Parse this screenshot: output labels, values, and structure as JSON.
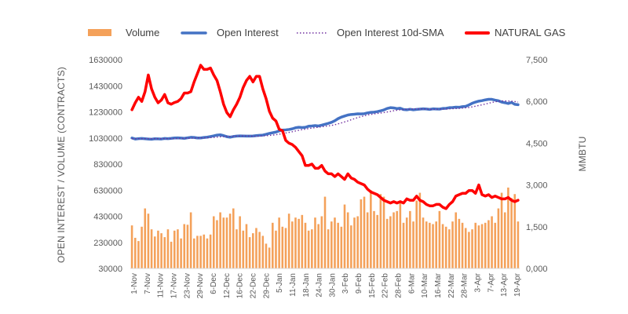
{
  "chart_data": {
    "type": "bar+line",
    "title": "",
    "legend": {
      "position": "top",
      "items": [
        {
          "name": "Volume",
          "style": "bar",
          "color": "#F4A15A"
        },
        {
          "name": "Open Interest",
          "style": "line",
          "color": "#4472C4"
        },
        {
          "name": "Open Interest 10d-SMA",
          "style": "dotted",
          "color": "#7030A0"
        },
        {
          "name": "NATURAL GAS",
          "style": "line",
          "color": "#FF0000"
        }
      ]
    },
    "ylabel_left": "OPEN INTEREST / VOLUME (CONTRACTS)",
    "ylabel_right": "MMBTU",
    "ylim_left": [
      30000,
      1630000
    ],
    "ylim_right": [
      0,
      7500
    ],
    "yticks_left": [
      "1630000",
      "1430000",
      "1230000",
      "1030000",
      "830000",
      "630000",
      "430000",
      "230000",
      "30000"
    ],
    "yticks_right": [
      "7,500",
      "6,000",
      "4,500",
      "3,000",
      "1,500",
      "0,000"
    ],
    "x_tick_labels": [
      "1-Nov",
      "7-Nov",
      "11-Nov",
      "17-Nov",
      "23-Nov",
      "29-Nov",
      "6-Dec",
      "12-Dec",
      "16-Dec",
      "22-Dec",
      "29-Dec",
      "5-Jan",
      "11-Jan",
      "18-Jan",
      "24-Jan",
      "30-Jan",
      "3-Feb",
      "9-Feb",
      "15-Feb",
      "22-Feb",
      "28-Feb",
      "6-Mar",
      "10-Mar",
      "16-Mar",
      "22-Mar",
      "28-Mar",
      "3-Apr",
      "7-Apr",
      "13-Apr",
      "19-Apr"
    ],
    "n_points": 119,
    "series": [
      {
        "name": "Volume",
        "axis": "left",
        "values": [
          360000,
          265000,
          240000,
          350000,
          490000,
          450000,
          330000,
          275000,
          320000,
          300000,
          270000,
          330000,
          235000,
          320000,
          330000,
          260000,
          370000,
          365000,
          460000,
          260000,
          280000,
          280000,
          290000,
          260000,
          290000,
          430000,
          400000,
          460000,
          420000,
          420000,
          450000,
          490000,
          330000,
          430000,
          320000,
          370000,
          270000,
          300000,
          340000,
          310000,
          280000,
          220000,
          190000,
          380000,
          320000,
          420000,
          350000,
          340000,
          450000,
          390000,
          420000,
          410000,
          440000,
          380000,
          320000,
          330000,
          420000,
          370000,
          430000,
          580000,
          330000,
          390000,
          420000,
          380000,
          350000,
          520000,
          460000,
          360000,
          420000,
          430000,
          560000,
          580000,
          460000,
          630000,
          470000,
          440000,
          600000,
          580000,
          410000,
          430000,
          460000,
          470000,
          530000,
          380000,
          420000,
          470000,
          390000,
          550000,
          610000,
          420000,
          390000,
          380000,
          370000,
          390000,
          470000,
          370000,
          350000,
          330000,
          390000,
          460000,
          410000,
          380000,
          340000,
          310000,
          330000,
          380000,
          360000,
          370000,
          380000,
          400000,
          430000,
          380000,
          490000,
          610000,
          460000,
          650000,
          570000,
          600000,
          390000
        ]
      },
      {
        "name": "Open Interest",
        "axis": "left",
        "values": [
          1030000,
          1022000,
          1025000,
          1026000,
          1024000,
          1022000,
          1020000,
          1024000,
          1023000,
          1022000,
          1026000,
          1025000,
          1027000,
          1030000,
          1031000,
          1029000,
          1027000,
          1031000,
          1035000,
          1034000,
          1030000,
          1030000,
          1034000,
          1036000,
          1041000,
          1046000,
          1052000,
          1054000,
          1048000,
          1040000,
          1036000,
          1041000,
          1044000,
          1046000,
          1045000,
          1044000,
          1044000,
          1045000,
          1048000,
          1050000,
          1052000,
          1058000,
          1065000,
          1070000,
          1075000,
          1084000,
          1090000,
          1092000,
          1095000,
          1100000,
          1108000,
          1112000,
          1110000,
          1112000,
          1120000,
          1122000,
          1125000,
          1122000,
          1128000,
          1135000,
          1142000,
          1150000,
          1162000,
          1178000,
          1190000,
          1198000,
          1206000,
          1210000,
          1212000,
          1215000,
          1214000,
          1216000,
          1222000,
          1226000,
          1228000,
          1232000,
          1238000,
          1245000,
          1256000,
          1262000,
          1260000,
          1255000,
          1258000,
          1248000,
          1246000,
          1250000,
          1246000,
          1249000,
          1251000,
          1253000,
          1252000,
          1249000,
          1253000,
          1252000,
          1251000,
          1256000,
          1257000,
          1262000,
          1263000,
          1266000,
          1265000,
          1270000,
          1272000,
          1283000,
          1296000,
          1305000,
          1312000,
          1316000,
          1322000,
          1326000,
          1326000,
          1320000,
          1315000,
          1305000,
          1300000,
          1294000,
          1302000,
          1288000,
          1285000
        ]
      },
      {
        "name": "Open Interest 10d-SMA",
        "axis": "left",
        "values": [
          1024400,
          1024400,
          1024400,
          1024400,
          1024400,
          1024400,
          1024400,
          1024400,
          1024400,
          1024400,
          1024400,
          1024700,
          1024700,
          1025100,
          1025800,
          1026300,
          1026800,
          1027400,
          1028600,
          1029600,
          1030100,
          1030600,
          1031100,
          1031700,
          1032800,
          1034400,
          1036500,
          1038800,
          1040600,
          1041200,
          1041800,
          1042900,
          1043900,
          1044900,
          1045300,
          1045100,
          1044300,
          1043400,
          1043400,
          1044400,
          1045600,
          1047300,
          1049400,
          1051800,
          1054800,
          1058800,
          1063400,
          1068100,
          1072800,
          1077800,
          1083400,
          1088800,
          1093300,
          1097500,
          1102000,
          1105800,
          1109300,
          1112300,
          1115600,
          1119100,
          1122500,
          1126300,
          1131500,
          1138100,
          1145100,
          1152700,
          1160800,
          1169600,
          1178000,
          1186000,
          1193200,
          1199800,
          1205800,
          1210600,
          1214400,
          1217800,
          1221000,
          1224500,
          1228900,
          1233700,
          1238300,
          1242200,
          1245800,
          1248000,
          1249800,
          1251600,
          1252400,
          1252700,
          1252500,
          1251600,
          1250800,
          1249700,
          1249200,
          1249600,
          1250100,
          1250700,
          1251800,
          1253100,
          1254300,
          1255600,
          1256900,
          1259000,
          1260900,
          1263800,
          1268300,
          1273200,
          1278700,
          1284100,
          1289900,
          1295900,
          1302000,
          1307000,
          1311300,
          1313500,
          1313900,
          1312800,
          1311800,
          1309000,
          1305300
        ]
      },
      {
        "name": "NATURAL GAS",
        "axis": "right",
        "values": [
          5700,
          5950,
          6150,
          6000,
          6350,
          6950,
          6450,
          6150,
          5950,
          6050,
          6250,
          5950,
          5900,
          5960,
          6000,
          6100,
          6300,
          6300,
          6350,
          6700,
          7000,
          7300,
          7150,
          7150,
          7200,
          6950,
          6750,
          6350,
          5900,
          5600,
          5450,
          5700,
          5900,
          6150,
          6500,
          6750,
          6900,
          6700,
          6900,
          6900,
          6450,
          6100,
          5650,
          5400,
          5300,
          5000,
          4950,
          4600,
          4500,
          4450,
          4350,
          4200,
          4050,
          3700,
          3700,
          3750,
          3600,
          3600,
          3700,
          3500,
          3400,
          3400,
          3300,
          3400,
          3300,
          3200,
          3400,
          3250,
          3200,
          3100,
          3050,
          3000,
          2850,
          2750,
          2700,
          2650,
          2550,
          2450,
          2400,
          2350,
          2400,
          2350,
          2400,
          2350,
          2500,
          2450,
          2450,
          2600,
          2450,
          2400,
          2300,
          2250,
          2250,
          2300,
          2300,
          2200,
          2150,
          2300,
          2400,
          2600,
          2650,
          2700,
          2700,
          2800,
          2800,
          2700,
          3000,
          2650,
          2600,
          2650,
          2550,
          2600,
          2550,
          2500,
          2500,
          2550,
          2450,
          2400,
          2450
        ]
      }
    ]
  }
}
